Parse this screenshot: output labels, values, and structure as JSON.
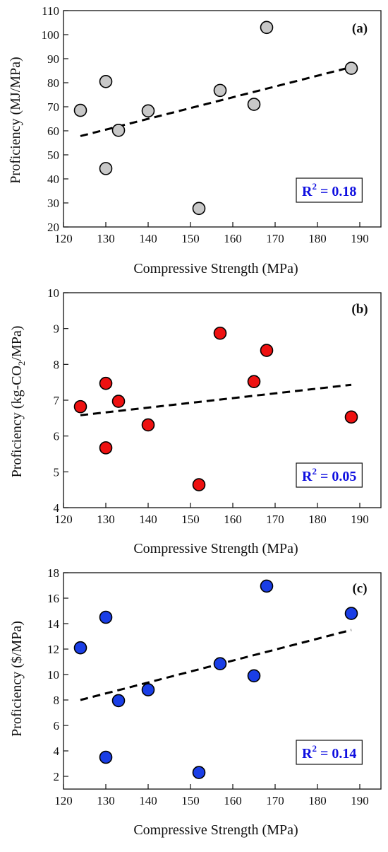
{
  "chart_data": [
    {
      "type": "scatter",
      "panel_label": "(a)",
      "xlabel": "Compressive Strength (MPa)",
      "ylabel": "Proficiency (MJ/MPa)",
      "xlim": [
        120,
        195
      ],
      "ylim": [
        20,
        110
      ],
      "xticks": [
        120,
        130,
        140,
        150,
        160,
        170,
        180,
        190
      ],
      "yticks": [
        20,
        30,
        40,
        50,
        60,
        70,
        80,
        90,
        100,
        110
      ],
      "point_color": "#c8c8c8",
      "x": [
        124,
        130,
        130,
        133,
        140,
        152,
        157,
        165,
        168,
        188
      ],
      "y": [
        68.5,
        80.5,
        44.3,
        60.2,
        68.3,
        27.7,
        76.8,
        71.0,
        103.0,
        86.0
      ],
      "trendline": {
        "x": [
          124,
          188
        ],
        "y": [
          57.8,
          86.5
        ]
      },
      "annotation": {
        "prefix": "R",
        "sup": "2",
        "text": " = 0.18"
      }
    },
    {
      "type": "scatter",
      "panel_label": "(b)",
      "xlabel": "Compressive Strength (MPa)",
      "ylabel_main": "Proficiency (kg-CO",
      "ylabel_sub": "2",
      "ylabel_tail": "/MPa)",
      "xlim": [
        120,
        195
      ],
      "ylim": [
        4,
        10
      ],
      "xticks": [
        120,
        130,
        140,
        150,
        160,
        170,
        180,
        190
      ],
      "yticks": [
        4,
        5,
        6,
        7,
        8,
        9,
        10
      ],
      "point_color": "#ee1111",
      "x": [
        124,
        130,
        130,
        133,
        140,
        152,
        157,
        165,
        168,
        188
      ],
      "y": [
        6.82,
        7.47,
        5.67,
        6.97,
        6.31,
        4.64,
        8.87,
        7.52,
        8.39,
        6.53
      ],
      "trendline": {
        "x": [
          124,
          188
        ],
        "y": [
          6.58,
          7.43
        ]
      },
      "annotation": {
        "prefix": "R",
        "sup": "2",
        "text": " = 0.05"
      }
    },
    {
      "type": "scatter",
      "panel_label": "(c)",
      "xlabel": "Compressive Strength (MPa)",
      "ylabel": "Proficiency ($/MPa)",
      "xlim": [
        120,
        195
      ],
      "ylim": [
        1,
        18
      ],
      "xticks": [
        120,
        130,
        140,
        150,
        160,
        170,
        180,
        190
      ],
      "yticks": [
        2,
        4,
        6,
        8,
        10,
        12,
        14,
        16,
        18
      ],
      "point_color": "#1a3ee6",
      "x": [
        124,
        130,
        130,
        133,
        140,
        152,
        157,
        165,
        168,
        188
      ],
      "y": [
        12.1,
        14.5,
        3.5,
        7.95,
        8.8,
        2.3,
        10.85,
        9.9,
        16.95,
        14.8
      ],
      "trendline": {
        "x": [
          124,
          188
        ],
        "y": [
          8.0,
          13.5
        ]
      },
      "annotation": {
        "prefix": "R",
        "sup": "2",
        "text": " = 0.14"
      }
    }
  ]
}
